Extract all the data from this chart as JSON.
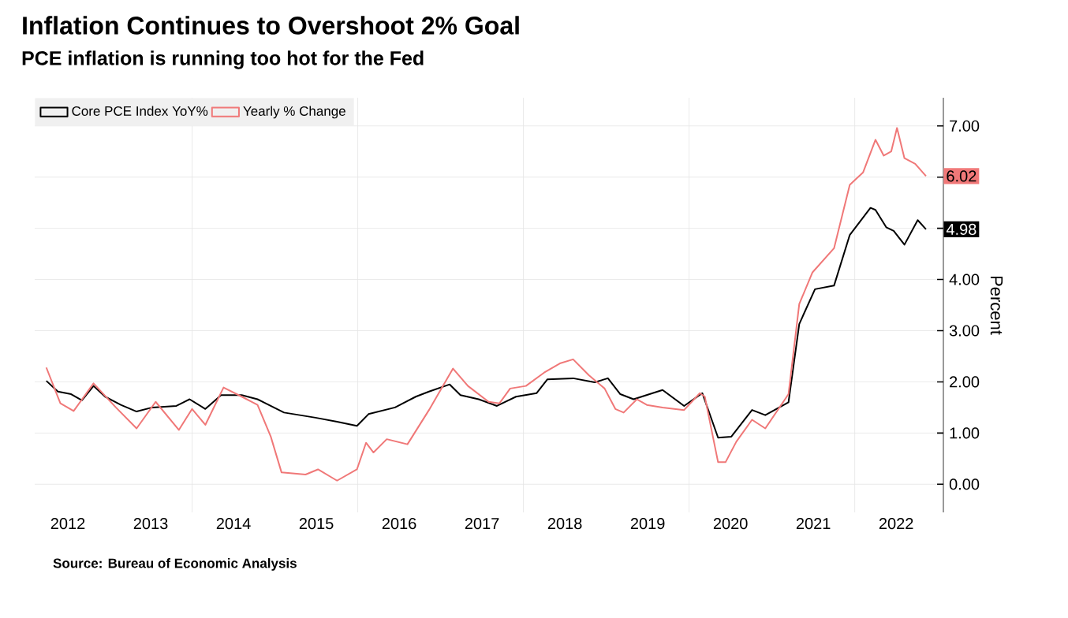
{
  "chart_data": {
    "type": "line",
    "title": "Inflation Continues to Overshoot 2% Goal",
    "subtitle": "PCE inflation is running too hot for the Fed",
    "ylabel": "Percent",
    "series": [
      {
        "name": "Core PCE Index YoY%",
        "color": "#000000",
        "x": [
          2012.24,
          2012.38,
          2012.54,
          2012.67,
          2012.81,
          2012.95,
          2013.14,
          2013.33,
          2013.52,
          2013.81,
          2013.97,
          2014.16,
          2014.35,
          2014.6,
          2014.79,
          2015.11,
          2015.49,
          2015.75,
          2015.99,
          2016.13,
          2016.45,
          2016.7,
          2016.86,
          2017.11,
          2017.24,
          2017.46,
          2017.68,
          2017.91,
          2018.16,
          2018.29,
          2018.6,
          2018.86,
          2019.02,
          2019.17,
          2019.33,
          2019.56,
          2019.68,
          2019.94,
          2020.16,
          2020.35,
          2020.51,
          2020.76,
          2020.92,
          2021.2,
          2021.33,
          2021.52,
          2021.75,
          2021.94,
          2022.19,
          2022.25,
          2022.38,
          2022.47,
          2022.6,
          2022.76,
          2022.86
        ],
        "values": [
          2.02,
          1.81,
          1.76,
          1.64,
          1.92,
          1.71,
          1.55,
          1.42,
          1.5,
          1.53,
          1.66,
          1.47,
          1.74,
          1.74,
          1.66,
          1.4,
          1.3,
          1.22,
          1.14,
          1.37,
          1.5,
          1.71,
          1.81,
          1.95,
          1.74,
          1.66,
          1.53,
          1.71,
          1.78,
          2.05,
          2.07,
          1.99,
          2.07,
          1.76,
          1.66,
          1.78,
          1.84,
          1.53,
          1.78,
          0.91,
          0.93,
          1.45,
          1.35,
          1.6,
          3.13,
          3.81,
          3.88,
          4.87,
          5.4,
          5.36,
          5.02,
          4.95,
          4.68,
          5.16,
          4.98
        ]
      },
      {
        "name": "Yearly % Change",
        "color": "#f07878",
        "x": [
          2012.24,
          2012.41,
          2012.57,
          2012.81,
          2013.08,
          2013.33,
          2013.56,
          2013.84,
          2014.0,
          2014.16,
          2014.38,
          2014.6,
          2014.79,
          2014.95,
          2015.08,
          2015.37,
          2015.52,
          2015.75,
          2015.99,
          2016.1,
          2016.19,
          2016.35,
          2016.6,
          2016.86,
          2017.15,
          2017.33,
          2017.58,
          2017.71,
          2017.84,
          2018.03,
          2018.25,
          2018.44,
          2018.6,
          2018.79,
          2018.98,
          2019.11,
          2019.21,
          2019.37,
          2019.49,
          2019.68,
          2019.94,
          2020.13,
          2020.19,
          2020.35,
          2020.44,
          2020.57,
          2020.76,
          2020.92,
          2021.2,
          2021.33,
          2021.49,
          2021.75,
          2021.94,
          2022.1,
          2022.25,
          2022.35,
          2022.44,
          2022.51,
          2022.6,
          2022.73,
          2022.86
        ],
        "values": [
          2.28,
          1.58,
          1.43,
          1.97,
          1.5,
          1.09,
          1.61,
          1.06,
          1.47,
          1.16,
          1.89,
          1.71,
          1.55,
          0.93,
          0.23,
          0.19,
          0.29,
          0.07,
          0.29,
          0.81,
          0.62,
          0.88,
          0.78,
          1.45,
          2.26,
          1.92,
          1.61,
          1.58,
          1.87,
          1.92,
          2.18,
          2.36,
          2.44,
          2.13,
          1.87,
          1.47,
          1.4,
          1.66,
          1.55,
          1.5,
          1.45,
          1.78,
          1.71,
          0.43,
          0.43,
          0.83,
          1.26,
          1.09,
          1.76,
          3.52,
          4.14,
          4.61,
          5.85,
          6.09,
          6.73,
          6.42,
          6.5,
          6.96,
          6.37,
          6.26,
          6.02
        ]
      }
    ],
    "xlim": [
      2012.1,
      2023.07
    ],
    "xticks": [
      {
        "value": 2012.5,
        "label": "2012"
      },
      {
        "value": 2013.5,
        "label": "2013"
      },
      {
        "value": 2014.5,
        "label": "2014"
      },
      {
        "value": 2015.5,
        "label": "2015"
      },
      {
        "value": 2016.5,
        "label": "2016"
      },
      {
        "value": 2017.5,
        "label": "2017"
      },
      {
        "value": 2018.5,
        "label": "2018"
      },
      {
        "value": 2019.5,
        "label": "2019"
      },
      {
        "value": 2020.5,
        "label": "2020"
      },
      {
        "value": 2021.5,
        "label": "2021"
      },
      {
        "value": 2022.5,
        "label": "2022"
      },
      {
        "value": 2014,
        "label": null
      },
      {
        "value": 2016,
        "label": null
      },
      {
        "value": 2018,
        "label": null
      },
      {
        "value": 2020,
        "label": null
      },
      {
        "value": 2022,
        "label": null
      }
    ],
    "ylim": [
      -0.55,
      7.55
    ],
    "yticks": [
      {
        "value": 0,
        "label": "0.00"
      },
      {
        "value": 1,
        "label": "1.00"
      },
      {
        "value": 2,
        "label": "2.00"
      },
      {
        "value": 3,
        "label": "3.00"
      },
      {
        "value": 4,
        "label": "4.00"
      },
      {
        "value": 5,
        "label": null
      },
      {
        "value": 6,
        "label": null
      },
      {
        "value": 7,
        "label": "7.00"
      }
    ],
    "grid": true,
    "legend": "top left",
    "annotations": [
      {
        "text": "6.02",
        "x": 2022.86,
        "y": 6.02
      },
      {
        "text": "4.98",
        "x": 2022.86,
        "y": 4.98
      },
      "Source: Bureau of Economic Analysis"
    ]
  }
}
